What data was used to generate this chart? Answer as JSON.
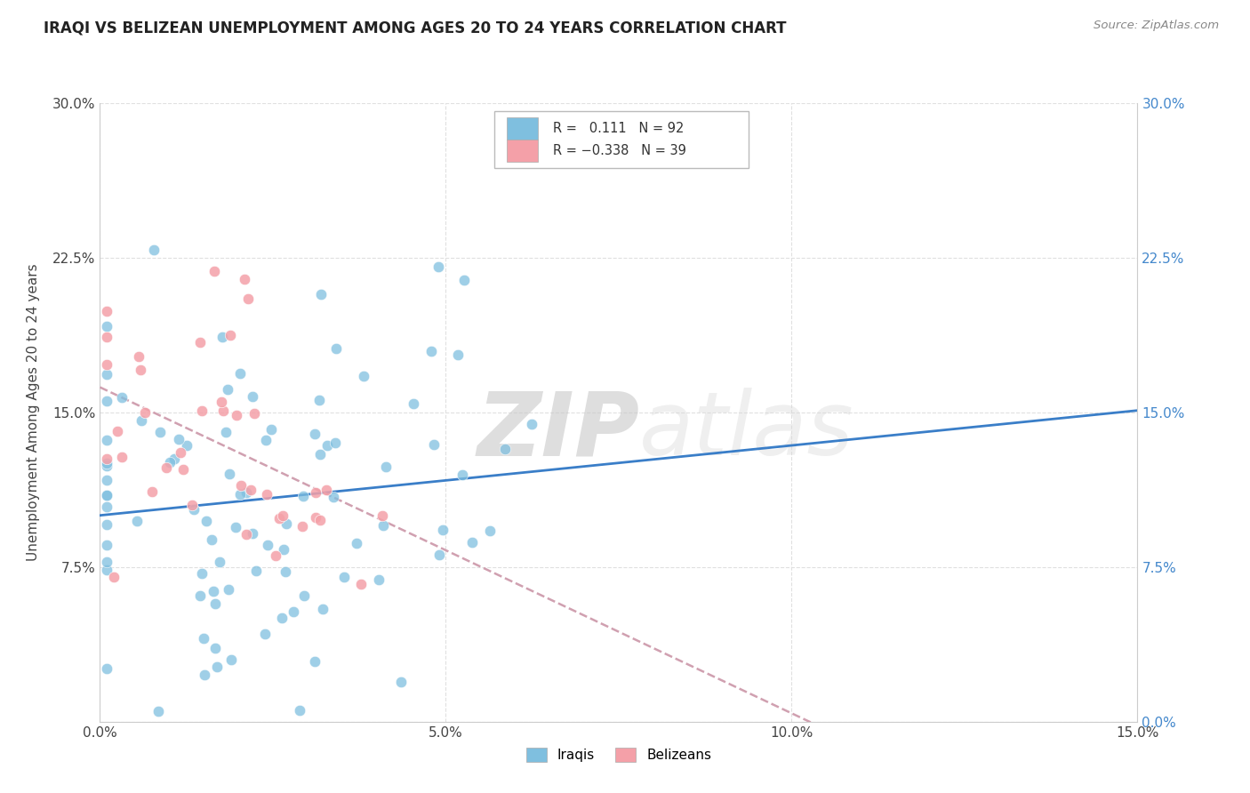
{
  "title": "IRAQI VS BELIZEAN UNEMPLOYMENT AMONG AGES 20 TO 24 YEARS CORRELATION CHART",
  "source": "Source: ZipAtlas.com",
  "ylabel": "Unemployment Among Ages 20 to 24 years",
  "xlim": [
    0.0,
    0.15
  ],
  "ylim": [
    0.0,
    0.3
  ],
  "xticks": [
    0.0,
    0.05,
    0.1,
    0.15
  ],
  "xticklabels": [
    "0.0%",
    "5.0%",
    "10.0%",
    "15.0%"
  ],
  "yticks": [
    0.0,
    0.075,
    0.15,
    0.225,
    0.3
  ],
  "yticklabels_left": [
    "",
    "7.5%",
    "15.0%",
    "22.5%",
    "30.0%"
  ],
  "yticklabels_right": [
    "0.0%",
    "7.5%",
    "15.0%",
    "22.5%",
    "30.0%"
  ],
  "iraqis_R": 0.111,
  "iraqis_N": 92,
  "belizeans_R": -0.338,
  "belizeans_N": 39,
  "iraqis_color": "#7fbfdf",
  "belizeans_color": "#f4a0a8",
  "iraqis_line_color": "#3a7ec8",
  "belizeans_line_color": "#d0a0b0",
  "watermark_top": "ZIP",
  "watermark_bottom": "atlas",
  "watermark_color": "#d8d8d8",
  "background_color": "#ffffff",
  "legend_iraqis_label": "R =   0.111   N = 92",
  "legend_belizeans_label": "R = -0.338   N = 39",
  "bottom_legend_iraqis": "Iraqis",
  "bottom_legend_belizeans": "Belizeans"
}
